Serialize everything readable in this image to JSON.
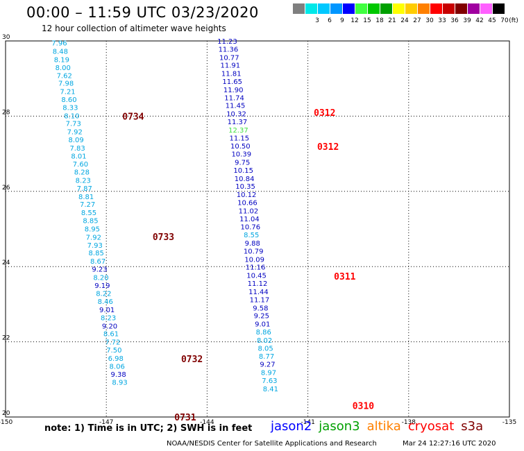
{
  "header": {
    "title": "00:00 – 11:59 UTC 03/23/2020",
    "subtitle": "12 hour collection of altimeter wave heights"
  },
  "legend": {
    "unit": "(ft)",
    "items": [
      {
        "label": "",
        "color": "#7f7f7f"
      },
      {
        "label": "3",
        "color": "#00e8e8"
      },
      {
        "label": "6",
        "color": "#00c8ff"
      },
      {
        "label": "9",
        "color": "#0096ff"
      },
      {
        "label": "12",
        "color": "#0000ff"
      },
      {
        "label": "15",
        "color": "#40ff40"
      },
      {
        "label": "18",
        "color": "#00c800"
      },
      {
        "label": "21",
        "color": "#00a000"
      },
      {
        "label": "24",
        "color": "#ffff00"
      },
      {
        "label": "27",
        "color": "#ffcc00"
      },
      {
        "label": "30",
        "color": "#ff8000"
      },
      {
        "label": "33",
        "color": "#ff0000"
      },
      {
        "label": "36",
        "color": "#c80000"
      },
      {
        "label": "39",
        "color": "#800000"
      },
      {
        "label": "42",
        "color": "#a000a0"
      },
      {
        "label": "45",
        "color": "#ff60ff"
      },
      {
        "label": "70",
        "color": "#000000"
      }
    ]
  },
  "axes": {
    "lon_ticks": [
      {
        "label": "-150",
        "lon": -150
      },
      {
        "label": "-147",
        "lon": -147
      },
      {
        "label": "-144",
        "lon": -144
      },
      {
        "label": "-141",
        "lon": -141
      },
      {
        "label": "-138",
        "lon": -138
      },
      {
        "label": "-135",
        "lon": -135
      }
    ],
    "lat_ticks": [
      {
        "label": "30",
        "lat": 30
      },
      {
        "label": "28",
        "lat": 28
      },
      {
        "label": "26",
        "lat": 26
      },
      {
        "label": "24",
        "lat": 24
      },
      {
        "label": "22",
        "lat": 22
      },
      {
        "label": "20",
        "lat": 20
      }
    ],
    "lon_range": [
      -150,
      -135
    ],
    "lat_range": [
      20,
      30
    ]
  },
  "colors": {
    "light": "#00a6e0",
    "dark": "#0000c0",
    "green": "#40e040",
    "pass_dark": "#800000",
    "pass_red": "#ff0000"
  },
  "tracks": [
    {
      "name": "left-track",
      "points": [
        {
          "v": "7.96",
          "lon": -148.4,
          "lat": 29.95,
          "c": "light"
        },
        {
          "v": "8.48",
          "lon": -148.37,
          "lat": 29.73,
          "c": "light"
        },
        {
          "v": "8.19",
          "lon": -148.33,
          "lat": 29.51,
          "c": "light"
        },
        {
          "v": "8.00",
          "lon": -148.29,
          "lat": 29.3,
          "c": "light"
        },
        {
          "v": "7.62",
          "lon": -148.25,
          "lat": 29.09,
          "c": "light"
        },
        {
          "v": "7.98",
          "lon": -148.2,
          "lat": 28.88,
          "c": "light"
        },
        {
          "v": "7.21",
          "lon": -148.15,
          "lat": 28.66,
          "c": "light"
        },
        {
          "v": "8.60",
          "lon": -148.11,
          "lat": 28.45,
          "c": "light"
        },
        {
          "v": "8.33",
          "lon": -148.07,
          "lat": 28.24,
          "c": "light"
        },
        {
          "v": "8.10",
          "lon": -148.03,
          "lat": 28.02,
          "c": "light"
        },
        {
          "v": "7.73",
          "lon": -147.98,
          "lat": 27.81,
          "c": "light"
        },
        {
          "v": "7.92",
          "lon": -147.94,
          "lat": 27.59,
          "c": "light"
        },
        {
          "v": "8.09",
          "lon": -147.9,
          "lat": 27.38,
          "c": "light"
        },
        {
          "v": "7.83",
          "lon": -147.86,
          "lat": 27.16,
          "c": "light"
        },
        {
          "v": "8.01",
          "lon": -147.82,
          "lat": 26.95,
          "c": "light"
        },
        {
          "v": "7.60",
          "lon": -147.77,
          "lat": 26.73,
          "c": "light"
        },
        {
          "v": "8.28",
          "lon": -147.73,
          "lat": 26.52,
          "c": "light"
        },
        {
          "v": "8.23",
          "lon": -147.69,
          "lat": 26.3,
          "c": "light"
        },
        {
          "v": "7.87",
          "lon": -147.65,
          "lat": 26.09,
          "c": "light"
        },
        {
          "v": "8.81",
          "lon": -147.6,
          "lat": 25.87,
          "c": "light"
        },
        {
          "v": "7.27",
          "lon": -147.56,
          "lat": 25.66,
          "c": "light"
        },
        {
          "v": "8.55",
          "lon": -147.52,
          "lat": 25.44,
          "c": "light"
        },
        {
          "v": "8.85",
          "lon": -147.47,
          "lat": 25.23,
          "c": "light"
        },
        {
          "v": "8.95",
          "lon": -147.42,
          "lat": 25.01,
          "c": "light"
        },
        {
          "v": "7.92",
          "lon": -147.38,
          "lat": 24.79,
          "c": "light"
        },
        {
          "v": "7.93",
          "lon": -147.34,
          "lat": 24.58,
          "c": "light"
        },
        {
          "v": "8.85",
          "lon": -147.3,
          "lat": 24.37,
          "c": "light"
        },
        {
          "v": "8.67",
          "lon": -147.25,
          "lat": 24.15,
          "c": "light"
        },
        {
          "v": "9.23",
          "lon": -147.2,
          "lat": 23.94,
          "c": "dark"
        },
        {
          "v": "8.20",
          "lon": -147.16,
          "lat": 23.72,
          "c": "light"
        },
        {
          "v": "9.19",
          "lon": -147.12,
          "lat": 23.51,
          "c": "dark"
        },
        {
          "v": "8.22",
          "lon": -147.08,
          "lat": 23.29,
          "c": "light"
        },
        {
          "v": "8.46",
          "lon": -147.03,
          "lat": 23.08,
          "c": "light"
        },
        {
          "v": "9.01",
          "lon": -146.98,
          "lat": 22.86,
          "c": "dark"
        },
        {
          "v": "8.23",
          "lon": -146.94,
          "lat": 22.65,
          "c": "light"
        },
        {
          "v": "9.20",
          "lon": -146.9,
          "lat": 22.43,
          "c": "dark"
        },
        {
          "v": "8.61",
          "lon": -146.86,
          "lat": 22.22,
          "c": "light"
        },
        {
          "v": "7.72",
          "lon": -146.81,
          "lat": 22.0,
          "c": "light"
        },
        {
          "v": "7.50",
          "lon": -146.77,
          "lat": 21.79,
          "c": "light"
        },
        {
          "v": "6.98",
          "lon": -146.72,
          "lat": 21.57,
          "c": "light"
        },
        {
          "v": "8.06",
          "lon": -146.68,
          "lat": 21.36,
          "c": "light"
        },
        {
          "v": "9.38",
          "lon": -146.64,
          "lat": 21.14,
          "c": "dark"
        },
        {
          "v": "8.93",
          "lon": -146.6,
          "lat": 20.93,
          "c": "light"
        }
      ]
    },
    {
      "name": "right-track",
      "points": [
        {
          "v": "11.23",
          "lon": -143.4,
          "lat": 30.0,
          "c": "dark"
        },
        {
          "v": "11.36",
          "lon": -143.37,
          "lat": 29.79,
          "c": "dark"
        },
        {
          "v": "10.77",
          "lon": -143.34,
          "lat": 29.57,
          "c": "dark"
        },
        {
          "v": "11.91",
          "lon": -143.31,
          "lat": 29.36,
          "c": "dark"
        },
        {
          "v": "11.81",
          "lon": -143.28,
          "lat": 29.14,
          "c": "dark"
        },
        {
          "v": "11.65",
          "lon": -143.25,
          "lat": 28.93,
          "c": "dark"
        },
        {
          "v": "11.90",
          "lon": -143.22,
          "lat": 28.71,
          "c": "dark"
        },
        {
          "v": "11.74",
          "lon": -143.19,
          "lat": 28.5,
          "c": "dark"
        },
        {
          "v": "11.45",
          "lon": -143.16,
          "lat": 28.29,
          "c": "dark"
        },
        {
          "v": "10.32",
          "lon": -143.13,
          "lat": 28.07,
          "c": "dark"
        },
        {
          "v": "11.37",
          "lon": -143.1,
          "lat": 27.86,
          "c": "dark"
        },
        {
          "v": "12.37",
          "lon": -143.07,
          "lat": 27.64,
          "c": "green"
        },
        {
          "v": "11.15",
          "lon": -143.04,
          "lat": 27.43,
          "c": "dark"
        },
        {
          "v": "10.50",
          "lon": -143.01,
          "lat": 27.21,
          "c": "dark"
        },
        {
          "v": "10.39",
          "lon": -142.98,
          "lat": 27.0,
          "c": "dark"
        },
        {
          "v": "9.75",
          "lon": -142.95,
          "lat": 26.78,
          "c": "dark"
        },
        {
          "v": "10.15",
          "lon": -142.92,
          "lat": 26.57,
          "c": "dark"
        },
        {
          "v": "10.84",
          "lon": -142.89,
          "lat": 26.35,
          "c": "dark"
        },
        {
          "v": "10.35",
          "lon": -142.86,
          "lat": 26.14,
          "c": "dark"
        },
        {
          "v": "10.12",
          "lon": -142.83,
          "lat": 25.92,
          "c": "dark"
        },
        {
          "v": "10.66",
          "lon": -142.8,
          "lat": 25.71,
          "c": "dark"
        },
        {
          "v": "11.02",
          "lon": -142.77,
          "lat": 25.49,
          "c": "dark"
        },
        {
          "v": "11.04",
          "lon": -142.74,
          "lat": 25.28,
          "c": "dark"
        },
        {
          "v": "10.76",
          "lon": -142.71,
          "lat": 25.06,
          "c": "dark"
        },
        {
          "v": "8.55",
          "lon": -142.68,
          "lat": 24.85,
          "c": "light"
        },
        {
          "v": "9.88",
          "lon": -142.65,
          "lat": 24.63,
          "c": "dark"
        },
        {
          "v": "10.79",
          "lon": -142.62,
          "lat": 24.42,
          "c": "dark"
        },
        {
          "v": "10.09",
          "lon": -142.59,
          "lat": 24.2,
          "c": "dark"
        },
        {
          "v": "11.16",
          "lon": -142.56,
          "lat": 23.99,
          "c": "dark"
        },
        {
          "v": "10.45",
          "lon": -142.53,
          "lat": 23.77,
          "c": "dark"
        },
        {
          "v": "11.12",
          "lon": -142.5,
          "lat": 23.56,
          "c": "dark"
        },
        {
          "v": "11.44",
          "lon": -142.47,
          "lat": 23.34,
          "c": "dark"
        },
        {
          "v": "11.17",
          "lon": -142.44,
          "lat": 23.13,
          "c": "dark"
        },
        {
          "v": "9.58",
          "lon": -142.41,
          "lat": 22.91,
          "c": "dark"
        },
        {
          "v": "9.25",
          "lon": -142.38,
          "lat": 22.7,
          "c": "dark"
        },
        {
          "v": "9.01",
          "lon": -142.35,
          "lat": 22.48,
          "c": "dark"
        },
        {
          "v": "8.86",
          "lon": -142.32,
          "lat": 22.27,
          "c": "light"
        },
        {
          "v": "8.02",
          "lon": -142.29,
          "lat": 22.05,
          "c": "light"
        },
        {
          "v": "8.05",
          "lon": -142.26,
          "lat": 21.84,
          "c": "light"
        },
        {
          "v": "8.77",
          "lon": -142.23,
          "lat": 21.62,
          "c": "light"
        },
        {
          "v": "9.27",
          "lon": -142.2,
          "lat": 21.41,
          "c": "dark"
        },
        {
          "v": "8.97",
          "lon": -142.17,
          "lat": 21.19,
          "c": "light"
        },
        {
          "v": "7.63",
          "lon": -142.14,
          "lat": 20.98,
          "c": "light"
        },
        {
          "v": "8.41",
          "lon": -142.11,
          "lat": 20.76,
          "c": "light"
        }
      ]
    }
  ],
  "pass_labels": [
    {
      "t": "0734",
      "lon": -146.2,
      "lat": 28.0,
      "c": "pass_dark"
    },
    {
      "t": "0733",
      "lon": -145.3,
      "lat": 24.8,
      "c": "pass_dark"
    },
    {
      "t": "0732",
      "lon": -144.45,
      "lat": 21.55,
      "c": "pass_dark"
    },
    {
      "t": "0731",
      "lon": -144.65,
      "lat": 20.0,
      "c": "pass_dark"
    },
    {
      "t": "0312",
      "lon": -140.5,
      "lat": 28.1,
      "c": "pass_red"
    },
    {
      "t": "0312",
      "lon": -140.4,
      "lat": 27.2,
      "c": "pass_red"
    },
    {
      "t": "0311",
      "lon": -139.9,
      "lat": 23.75,
      "c": "pass_red"
    },
    {
      "t": "0310",
      "lon": -139.35,
      "lat": 20.3,
      "c": "pass_red"
    }
  ],
  "footer": {
    "note": "note: 1) Time is in UTC; 2) SWH is in feet",
    "satellites": [
      {
        "name": "jason2",
        "color": "#0000ff"
      },
      {
        "name": "jason3",
        "color": "#00a000"
      },
      {
        "name": "altika",
        "color": "#ff8000"
      },
      {
        "name": "cryosat",
        "color": "#ff0000"
      },
      {
        "name": "s3a",
        "color": "#800000"
      }
    ],
    "credit": "NOAA/NESDIS Center for Satellite Applications and Research",
    "timestamp": "Mar 24 12:27:16 UTC 2020"
  }
}
